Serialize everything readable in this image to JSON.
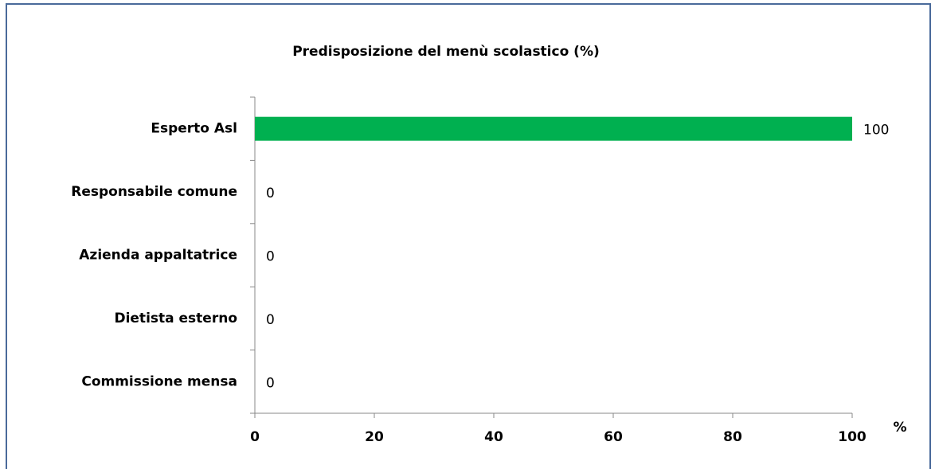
{
  "chart_data": {
    "type": "bar",
    "orientation": "horizontal",
    "title": "Predisposizione del menù scolastico (%)",
    "x_label": "%",
    "categories": [
      "Esperto Asl",
      "Responsabile comune",
      "Azienda appaltatrice",
      "Dietista esterno",
      "Commissione mensa"
    ],
    "values": [
      100,
      0,
      0,
      0,
      0
    ],
    "color": "#00b050",
    "xlim": [
      0,
      100
    ],
    "xticks": [
      0,
      20,
      40,
      60,
      80,
      100
    ],
    "grid": false
  }
}
